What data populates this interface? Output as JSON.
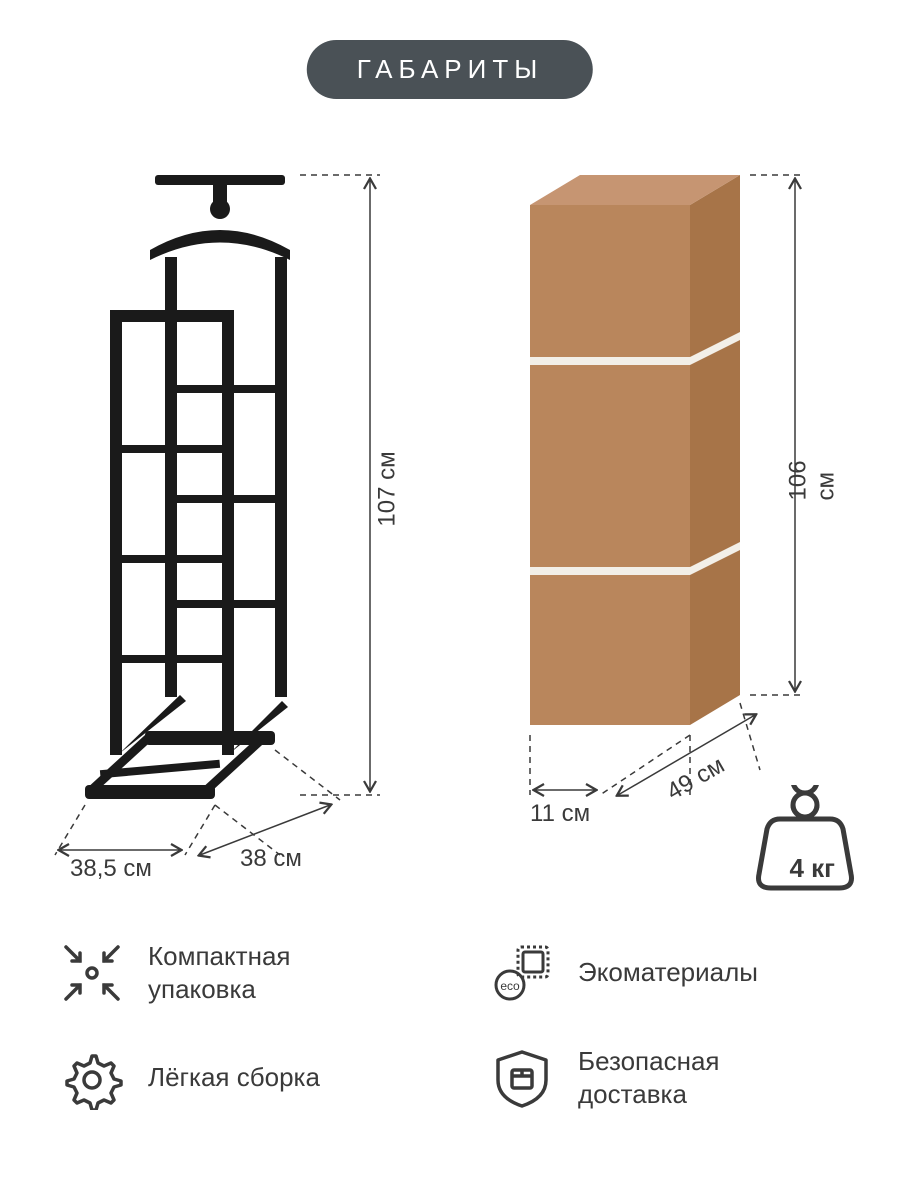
{
  "title": "ГАБАРИТЫ",
  "colors": {
    "badge_bg": "#4a5156",
    "badge_text": "#ffffff",
    "text": "#3a3a3a",
    "product": "#1a1a1a",
    "box_front": "#b9865c",
    "box_side": "#a77448",
    "box_top": "#c69572",
    "strap": "#f2efe8"
  },
  "product": {
    "height": "107 см",
    "width": "38 см",
    "depth": "38,5 см"
  },
  "box": {
    "height": "106 см",
    "width": "49 см",
    "depth": "11 см",
    "weight": "4 кг"
  },
  "features": [
    {
      "icon": "compact",
      "text": "Компактная упаковка"
    },
    {
      "icon": "eco",
      "text": "Экоматериалы"
    },
    {
      "icon": "assembly",
      "text": "Лёгкая сборка"
    },
    {
      "icon": "delivery",
      "text": "Безопасная доставка"
    }
  ]
}
